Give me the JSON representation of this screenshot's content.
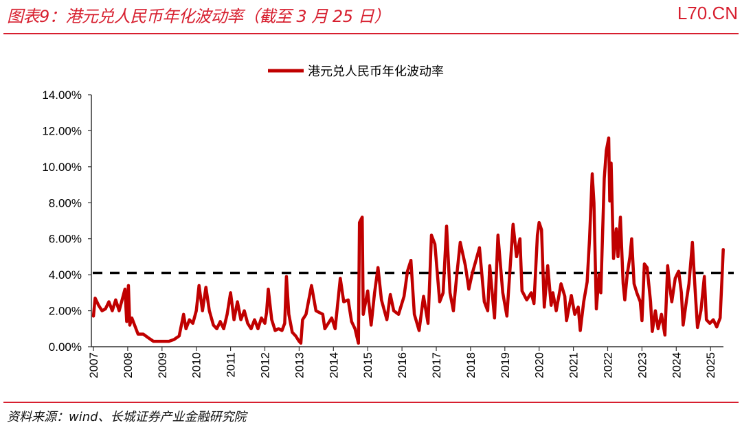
{
  "header": {
    "title": "图表9：港元兑人民币年化波动率（截至 3 月 25 日）",
    "brand": "L70.CN"
  },
  "footer": {
    "source": "资料来源：wind、长城证券产业金融研究院"
  },
  "colors": {
    "accent": "#d71f2f",
    "series": "#c00000",
    "reference_line": "#000000"
  },
  "chart_data": {
    "type": "line",
    "title": "",
    "xlabel": "",
    "ylabel": "",
    "legend_position": "top",
    "grid": false,
    "ylim": [
      0,
      14
    ],
    "xlim": [
      2007,
      2025.38
    ],
    "y_tick_labels": [
      "0.00%",
      "2.00%",
      "4.00%",
      "6.00%",
      "8.00%",
      "10.00%",
      "12.00%",
      "14.00%"
    ],
    "y_ticks": [
      0,
      2,
      4,
      6,
      8,
      10,
      12,
      14
    ],
    "x_tick_labels": [
      "2007",
      "2008",
      "2009",
      "2010",
      "2011",
      "2012",
      "2013",
      "2014",
      "2015",
      "2016",
      "2017",
      "2018",
      "2019",
      "2020",
      "2021",
      "2022",
      "2023",
      "2024",
      "2025"
    ],
    "series": [
      {
        "name": "港元兑人民币年化波动率",
        "x": [
          2007.0,
          2007.05,
          2007.15,
          2007.25,
          2007.35,
          2007.45,
          2007.55,
          2007.65,
          2007.75,
          2007.85,
          2007.92,
          2007.97,
          2008.02,
          2008.06,
          2008.12,
          2008.2,
          2008.3,
          2008.45,
          2008.6,
          2008.75,
          2008.9,
          2009.05,
          2009.2,
          2009.35,
          2009.5,
          2009.63,
          2009.7,
          2009.8,
          2009.9,
          2010.0,
          2010.08,
          2010.18,
          2010.28,
          2010.38,
          2010.5,
          2010.6,
          2010.7,
          2010.8,
          2010.9,
          2011.0,
          2011.1,
          2011.2,
          2011.3,
          2011.4,
          2011.5,
          2011.6,
          2011.7,
          2011.8,
          2011.9,
          2012.0,
          2012.05,
          2012.1,
          2012.2,
          2012.3,
          2012.4,
          2012.5,
          2012.58,
          2012.63,
          2012.7,
          2012.8,
          2012.9,
          2013.0,
          2013.05,
          2013.1,
          2013.2,
          2013.36,
          2013.49,
          2013.69,
          2013.75,
          2013.95,
          2014.05,
          2014.2,
          2014.3,
          2014.43,
          2014.53,
          2014.63,
          2014.73,
          2014.76,
          2014.84,
          2014.87,
          2015.0,
          2015.1,
          2015.2,
          2015.3,
          2015.4,
          2015.56,
          2015.66,
          2015.76,
          2015.9,
          2016.06,
          2016.16,
          2016.26,
          2016.36,
          2016.5,
          2016.63,
          2016.76,
          2016.86,
          2016.96,
          2017.1,
          2017.2,
          2017.3,
          2017.4,
          2017.5,
          2017.6,
          2017.7,
          2017.85,
          2017.95,
          2018.04,
          2018.26,
          2018.4,
          2018.5,
          2018.56,
          2018.7,
          2018.8,
          2018.94,
          2019.06,
          2019.14,
          2019.24,
          2019.34,
          2019.44,
          2019.5,
          2019.64,
          2019.77,
          2019.85,
          2019.95,
          2020.0,
          2020.07,
          2020.15,
          2020.25,
          2020.35,
          2020.4,
          2020.5,
          2020.64,
          2020.75,
          2020.8,
          2020.94,
          2021.04,
          2021.14,
          2021.2,
          2021.3,
          2021.4,
          2021.47,
          2021.55,
          2021.6,
          2021.67,
          2021.75,
          2021.8,
          2021.9,
          2021.96,
          2022.03,
          2022.06,
          2022.1,
          2022.17,
          2022.25,
          2022.3,
          2022.37,
          2022.45,
          2022.5,
          2022.57,
          2022.65,
          2022.7,
          2022.77,
          2022.85,
          2022.95,
          2023.0,
          2023.07,
          2023.15,
          2023.25,
          2023.3,
          2023.39,
          2023.47,
          2023.57,
          2023.67,
          2023.75,
          2023.8,
          2023.87,
          2023.97,
          2024.07,
          2024.15,
          2024.2,
          2024.3,
          2024.37,
          2024.47,
          2024.55,
          2024.62,
          2024.72,
          2024.82,
          2024.88,
          2024.98,
          2025.08,
          2025.18,
          2025.28,
          2025.35,
          2025.37
        ],
        "y": [
          1.7,
          2.7,
          2.3,
          2.0,
          2.1,
          2.5,
          2.0,
          2.6,
          2.0,
          2.7,
          3.2,
          1.4,
          3.4,
          1.2,
          1.6,
          1.2,
          0.7,
          0.7,
          0.5,
          0.3,
          0.3,
          0.3,
          0.3,
          0.4,
          0.6,
          1.8,
          1.0,
          1.5,
          1.3,
          2.0,
          3.4,
          2.0,
          3.3,
          2.0,
          1.2,
          1.0,
          1.4,
          1.0,
          1.8,
          3.0,
          1.5,
          2.5,
          1.5,
          2.0,
          1.3,
          1.0,
          1.5,
          1.0,
          1.6,
          1.3,
          1.9,
          3.2,
          1.5,
          0.9,
          1.0,
          0.9,
          1.3,
          3.9,
          1.8,
          0.8,
          0.6,
          0.3,
          0.2,
          1.5,
          1.8,
          3.4,
          2.0,
          1.8,
          1.0,
          1.6,
          1.0,
          3.8,
          2.5,
          2.6,
          1.4,
          1.0,
          0.2,
          6.9,
          7.2,
          1.8,
          3.1,
          1.2,
          3.0,
          4.4,
          2.6,
          1.5,
          2.9,
          2.0,
          1.8,
          2.8,
          4.2,
          4.8,
          1.8,
          0.9,
          2.8,
          1.3,
          6.2,
          5.7,
          2.5,
          3.0,
          6.7,
          3.0,
          2.0,
          4.0,
          5.8,
          4.5,
          3.2,
          4.0,
          5.5,
          2.5,
          2.0,
          4.5,
          1.6,
          6.2,
          3.0,
          1.7,
          4.0,
          6.8,
          5.0,
          6.0,
          3.1,
          2.6,
          3.0,
          2.4,
          6.2,
          6.9,
          6.5,
          2.2,
          4.5,
          2.3,
          3.0,
          2.0,
          3.5,
          2.8,
          1.45,
          2.85,
          1.8,
          2.2,
          0.9,
          2.5,
          3.6,
          6.0,
          9.6,
          8.0,
          2.1,
          4.0,
          3.0,
          9.35,
          10.9,
          11.6,
          8.1,
          10.2,
          4.9,
          6.55,
          5.0,
          7.2,
          3.5,
          2.6,
          4.0,
          5.0,
          6.0,
          3.5,
          3.0,
          2.5,
          1.45,
          4.6,
          4.4,
          2.5,
          0.85,
          2.0,
          1.0,
          1.8,
          0.65,
          4.5,
          3.5,
          2.5,
          3.8,
          4.2,
          3.0,
          1.2,
          2.6,
          3.5,
          5.8,
          3.2,
          1.07,
          2.0,
          3.9,
          1.5,
          1.3,
          1.5,
          1.1,
          1.6,
          4.5,
          5.4
        ]
      }
    ],
    "reference_line": {
      "style": "dashed",
      "y": 4.1
    }
  }
}
